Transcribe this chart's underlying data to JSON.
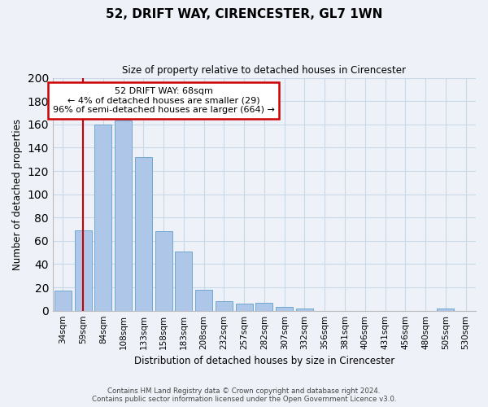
{
  "title": "52, DRIFT WAY, CIRENCESTER, GL7 1WN",
  "subtitle": "Size of property relative to detached houses in Cirencester",
  "xlabel": "Distribution of detached houses by size in Cirencester",
  "ylabel": "Number of detached properties",
  "bar_labels": [
    "34sqm",
    "59sqm",
    "84sqm",
    "108sqm",
    "133sqm",
    "158sqm",
    "183sqm",
    "208sqm",
    "232sqm",
    "257sqm",
    "282sqm",
    "307sqm",
    "332sqm",
    "356sqm",
    "381sqm",
    "406sqm",
    "431sqm",
    "456sqm",
    "480sqm",
    "505sqm",
    "530sqm"
  ],
  "bar_values": [
    17,
    69,
    160,
    163,
    132,
    68,
    51,
    18,
    8,
    6,
    7,
    3,
    2,
    0,
    0,
    0,
    0,
    0,
    0,
    2,
    0
  ],
  "bar_color": "#aec6e8",
  "bar_edge_color": "#6fa8d0",
  "vline_x": 1,
  "vline_color": "#cc0000",
  "annotation_line1": "52 DRIFT WAY: 68sqm",
  "annotation_line2": "← 4% of detached houses are smaller (29)",
  "annotation_line3": "96% of semi-detached houses are larger (664) →",
  "annotation_box_color": "#ffffff",
  "annotation_box_edge": "#cc0000",
  "ylim": [
    0,
    200
  ],
  "yticks": [
    0,
    20,
    40,
    60,
    80,
    100,
    120,
    140,
    160,
    180,
    200
  ],
  "grid_color": "#c8d8e8",
  "footer_line1": "Contains HM Land Registry data © Crown copyright and database right 2024.",
  "footer_line2": "Contains public sector information licensed under the Open Government Licence v3.0.",
  "bg_color": "#eef2f8"
}
